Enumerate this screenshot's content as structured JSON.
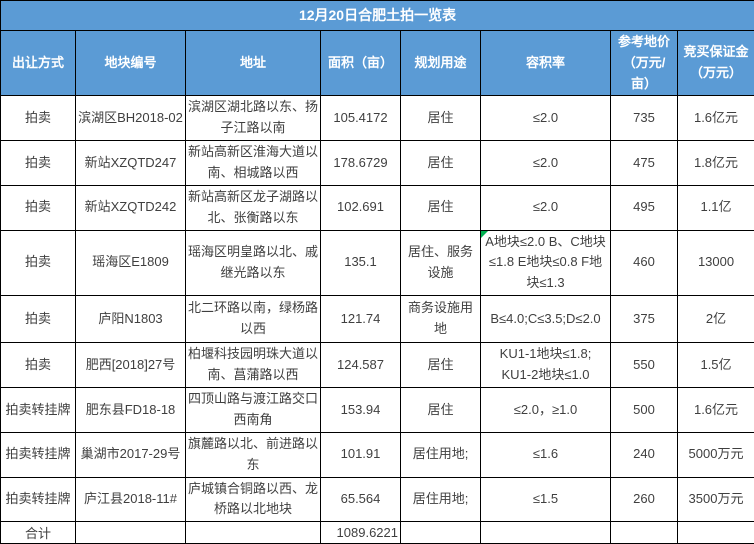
{
  "title": "12月20日合肥土拍一览表",
  "colors": {
    "header_bg": "#5B9BD5",
    "header_text": "#FFFFFF",
    "border": "#000000",
    "body_text": "#3F3F3F",
    "corner_marker_green": "#00B050"
  },
  "chart_data": {
    "type": "table",
    "title": "12月20日合肥土拍一览表",
    "columns": [
      "出让方式",
      "地块编号",
      "地址",
      "面积（亩）",
      "规划用途",
      "容积率",
      "参考地价\n（万元/亩）",
      "竞买保证金\n（万元）"
    ],
    "rows": [
      [
        "拍卖",
        "滨湖区BH2018-02",
        "滨湖区湖北路以东、扬子江路以南",
        "105.4172",
        "居住",
        "≤2.0",
        "735",
        "1.6亿元"
      ],
      [
        "拍卖",
        "新站XZQTD247",
        "新站高新区淮海大道以南、相城路以西",
        "178.6729",
        "居住",
        "≤2.0",
        "475",
        "1.8亿元"
      ],
      [
        "拍卖",
        "新站XZQTD242",
        "新站高新区龙子湖路以北、张衡路以东",
        "102.691",
        "居住",
        "≤2.0",
        "495",
        "1.1亿"
      ],
      [
        "拍卖",
        "瑶海区E1809",
        "瑶海区明皇路以北、戚继光路以东",
        "135.1",
        "居住、服务设施",
        "A地块≤2.0 B、C地块≤1.8 E地块≤0.8 F地块≤1.3",
        "460",
        "13000"
      ],
      [
        "拍卖",
        "庐阳N1803",
        "北二环路以南，绿杨路以西",
        "121.74",
        "商务设施用地",
        "B≤4.0;C≤3.5;D≤2.0",
        "375",
        "2亿"
      ],
      [
        "拍卖",
        "肥西[2018]27号",
        "柏堰科技园明珠大道以南、菖蒲路以西",
        "124.587",
        "居住",
        "KU1-1地块≤1.8;\nKU1-2地块≤1.0",
        "550",
        "1.5亿"
      ],
      [
        "拍卖转挂牌",
        "肥东县FD18-18",
        "四顶山路与渡江路交口西南角",
        "153.94",
        "居住",
        "≤2.0，≥1.0",
        "500",
        "1.6亿元"
      ],
      [
        "拍卖转挂牌",
        "巢湖市2017-29号",
        "旗麓路以北、前进路以东",
        "101.91",
        "居住用地;",
        "≤1.6",
        "240",
        "5000万元"
      ],
      [
        "拍卖转挂牌",
        "庐江县2018-11#",
        "庐城镇合铜路以西、龙桥路以北地块",
        "65.564",
        "居住用地;",
        "≤1.5",
        "260",
        "3500万元"
      ]
    ],
    "total_row": {
      "label": "合计",
      "area_total": "1089.6221"
    },
    "marker_cell": {
      "row_index": 3,
      "col_index": 5,
      "color": "#00B050"
    }
  }
}
